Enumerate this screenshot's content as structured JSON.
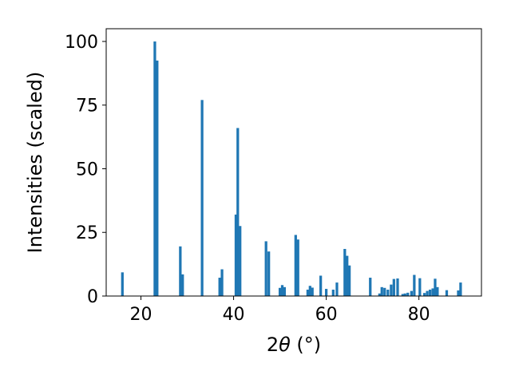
{
  "chart_data": {
    "type": "bar",
    "xlabel_parts": {
      "prefix": "2",
      "symbol": "θ",
      "suffix": " (°)"
    },
    "ylabel": "Intensities (scaled)",
    "xlim": [
      12.5,
      93.5
    ],
    "ylim": [
      0,
      105
    ],
    "xticks": [
      20,
      40,
      60,
      80
    ],
    "yticks": [
      0,
      25,
      50,
      75,
      100
    ],
    "grid": false,
    "bar_color": "#1f77b4",
    "bar_width": 0.56,
    "x": [
      16.0,
      23.0,
      23.5,
      28.5,
      29.0,
      33.2,
      37.0,
      37.5,
      40.5,
      40.9,
      41.4,
      47.0,
      47.6,
      50.0,
      50.5,
      51.0,
      53.4,
      53.9,
      56.0,
      56.5,
      57.0,
      58.8,
      60.0,
      61.5,
      62.3,
      64.0,
      64.5,
      65.0,
      69.5,
      71.5,
      72.0,
      72.6,
      73.3,
      74.0,
      74.6,
      75.4,
      76.5,
      77.0,
      77.6,
      78.4,
      79.0,
      80.2,
      81.2,
      81.8,
      82.4,
      83.0,
      83.5,
      84.0,
      86.0,
      88.5,
      89.0
    ],
    "y": [
      9.3,
      100,
      92.5,
      19.5,
      8.5,
      77,
      7.2,
      10.5,
      32,
      66,
      27.5,
      21.5,
      17.5,
      3.2,
      4.3,
      3.5,
      24,
      22.2,
      2.5,
      4,
      3.3,
      8,
      2.8,
      2.5,
      5.3,
      18.5,
      15.8,
      12,
      7.2,
      1.0,
      3.5,
      3.2,
      2.5,
      4.5,
      6.7,
      6.9,
      0.8,
      1.0,
      1.3,
      2.0,
      8.3,
      7.0,
      1.2,
      2.0,
      2.5,
      3.0,
      6.8,
      3.5,
      2.3,
      2.2,
      5.3
    ]
  }
}
